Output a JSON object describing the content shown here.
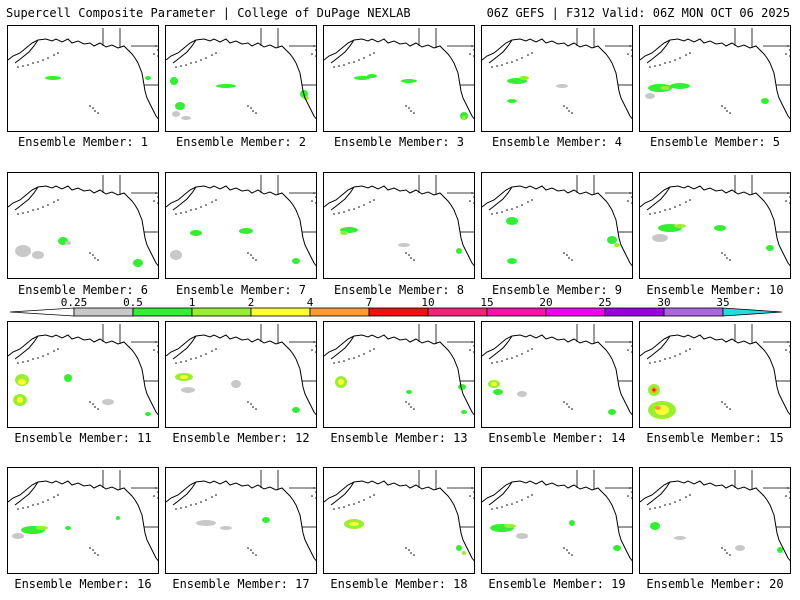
{
  "header": {
    "left": "Supercell Composite Parameter | College of DuPage NEXLAB",
    "right": "06Z GEFS | F312 Valid: 06Z MON OCT 06 2025"
  },
  "legend": {
    "thresholds": [
      "0.25",
      "0.5",
      "1",
      "2",
      "4",
      "7",
      "10",
      "15",
      "20",
      "25",
      "30",
      "35"
    ],
    "colors": [
      "#ffffff",
      "#c8c8c8",
      "#33ee33",
      "#99ee33",
      "#ffff33",
      "#ff9933",
      "#ee1111",
      "#ee2277",
      "#ff11aa",
      "#ee00ee",
      "#9900dd",
      "#aa66dd",
      "#22dddd"
    ]
  },
  "panels": [
    {
      "label": "Ensemble Member: 1"
    },
    {
      "label": "Ensemble Member: 2"
    },
    {
      "label": "Ensemble Member: 3"
    },
    {
      "label": "Ensemble Member: 4"
    },
    {
      "label": "Ensemble Member: 5"
    },
    {
      "label": "Ensemble Member: 6"
    },
    {
      "label": "Ensemble Member: 7"
    },
    {
      "label": "Ensemble Member: 8"
    },
    {
      "label": "Ensemble Member: 9"
    },
    {
      "label": "Ensemble Member: 10"
    },
    {
      "label": "Ensemble Member: 11"
    },
    {
      "label": "Ensemble Member: 12"
    },
    {
      "label": "Ensemble Member: 13"
    },
    {
      "label": "Ensemble Member: 14"
    },
    {
      "label": "Ensemble Member: 15"
    },
    {
      "label": "Ensemble Member: 16"
    },
    {
      "label": "Ensemble Member: 17"
    },
    {
      "label": "Ensemble Member: 18"
    },
    {
      "label": "Ensemble Member: 19"
    },
    {
      "label": "Ensemble Member: 20"
    }
  ]
}
